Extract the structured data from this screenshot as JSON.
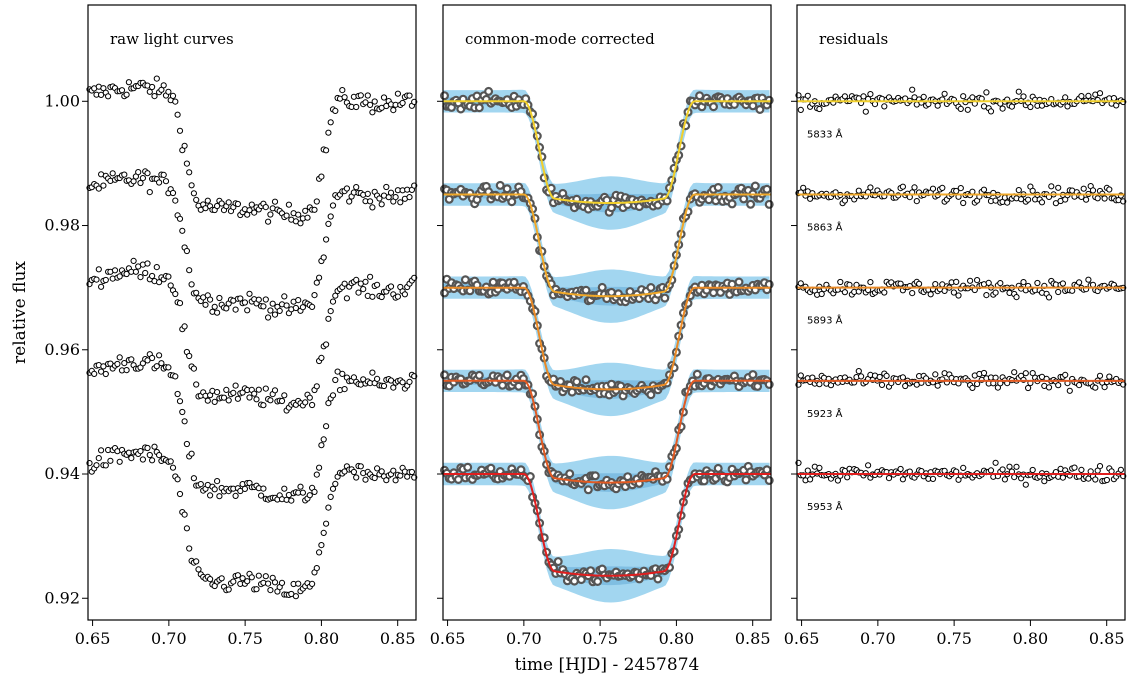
{
  "chart_data": {
    "type": "scatter",
    "panels": [
      {
        "title": "raw light curves"
      },
      {
        "title": "common-mode corrected"
      },
      {
        "title": "residuals"
      }
    ],
    "xlabel": "time [HJD] - 2457874",
    "ylabel": "relative flux",
    "xlim": [
      0.647,
      0.862
    ],
    "ylim": [
      0.9165,
      1.0155
    ],
    "x_ticks": [
      "0.65",
      "0.70",
      "0.75",
      "0.80",
      "0.85"
    ],
    "y_ticks": [
      "0.92",
      "0.94",
      "0.96",
      "0.98",
      "1.00"
    ],
    "grid": false,
    "transit": {
      "ingress_start": 0.7,
      "ingress_end": 0.72,
      "egress_start": 0.792,
      "egress_end": 0.812,
      "depth": 0.0155
    },
    "series": [
      {
        "name": "5833Å",
        "wavelength_label": "5833 Å",
        "offset": 1.0,
        "model_color": "#f2d02c"
      },
      {
        "name": "5863Å",
        "wavelength_label": "5863 Å",
        "offset": 0.985,
        "model_color": "#f0a829"
      },
      {
        "name": "5893Å",
        "wavelength_label": "5893 Å",
        "offset": 0.97,
        "model_color": "#ea8a26"
      },
      {
        "name": "5923Å",
        "wavelength_label": "5923 Å",
        "offset": 0.955,
        "model_color": "#e25a22"
      },
      {
        "name": "5953Å",
        "wavelength_label": "5953 Å",
        "offset": 0.94,
        "model_color": "#e01e1e"
      }
    ]
  }
}
